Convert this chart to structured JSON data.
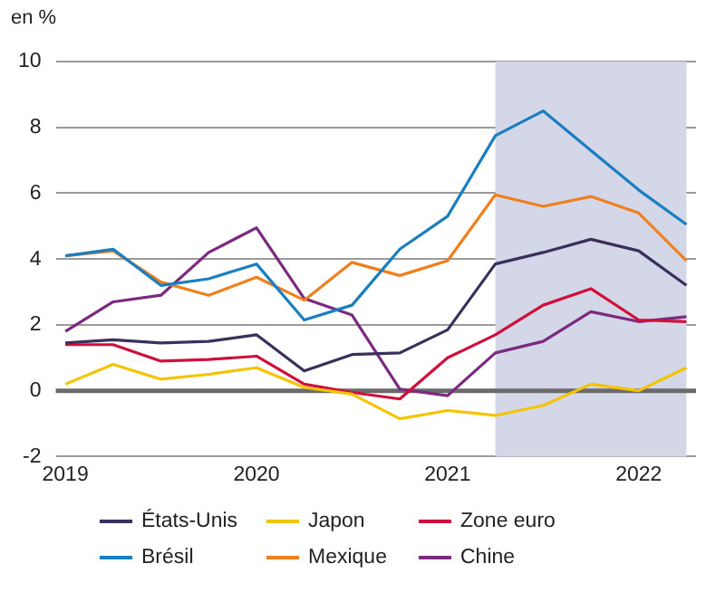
{
  "chart_data": {
    "type": "line",
    "ylabel": "en %",
    "x": [
      2019,
      2019.25,
      2019.5,
      2019.75,
      2020,
      2020.25,
      2020.5,
      2020.75,
      2021,
      2021.25,
      2021.5,
      2021.75,
      2022,
      2022.25
    ],
    "xlim": [
      2018.95,
      2022.3
    ],
    "xticks": [
      2019,
      2020,
      2021,
      2022
    ],
    "ylim": [
      -2,
      10
    ],
    "yticks": [
      -2,
      0,
      2,
      4,
      6,
      8,
      10
    ],
    "grid": "y",
    "legend": "bottom",
    "marker": "none",
    "line_style": "solid",
    "series": [
      {
        "name": "États-Unis",
        "color": "#3b2f5c",
        "values": [
          1.45,
          1.55,
          1.45,
          1.5,
          1.7,
          0.6,
          1.1,
          1.15,
          1.85,
          3.85,
          4.2,
          4.6,
          4.25,
          3.2
        ]
      },
      {
        "name": "Japon",
        "color": "#f5c400",
        "values": [
          0.2,
          0.8,
          0.35,
          0.5,
          0.7,
          0.1,
          -0.1,
          -0.85,
          -0.6,
          -0.75,
          -0.45,
          0.2,
          0,
          0.7
        ]
      },
      {
        "name": "Zone euro",
        "color": "#d0103a",
        "values": [
          1.4,
          1.4,
          0.9,
          0.95,
          1.05,
          0.2,
          -0.05,
          -0.25,
          1.0,
          1.7,
          2.6,
          3.1,
          2.15,
          2.1
        ]
      },
      {
        "name": "Brésil",
        "color": "#1a7fc1",
        "values": [
          4.1,
          4.3,
          3.2,
          3.4,
          3.85,
          2.15,
          2.6,
          4.3,
          5.3,
          7.75,
          8.5,
          7.3,
          6.1,
          5.05
        ]
      },
      {
        "name": "Mexique",
        "color": "#f07f1e",
        "values": [
          4.1,
          4.25,
          3.3,
          2.9,
          3.45,
          2.75,
          3.9,
          3.5,
          3.95,
          5.95,
          5.6,
          5.9,
          5.4,
          3.95
        ]
      },
      {
        "name": "Chine",
        "color": "#7b2a7f",
        "values": [
          1.8,
          2.7,
          2.9,
          4.2,
          4.95,
          2.8,
          2.3,
          0.05,
          -0.15,
          1.15,
          1.5,
          2.4,
          2.1,
          2.25
        ]
      }
    ],
    "bands": [
      {
        "axis": "x",
        "from": 2021.25,
        "to": 2022.25,
        "color": "#d4d7e8"
      }
    ],
    "ref_lines": [
      {
        "axis": "y",
        "value": 0,
        "color": "#6b6b6b"
      }
    ]
  }
}
